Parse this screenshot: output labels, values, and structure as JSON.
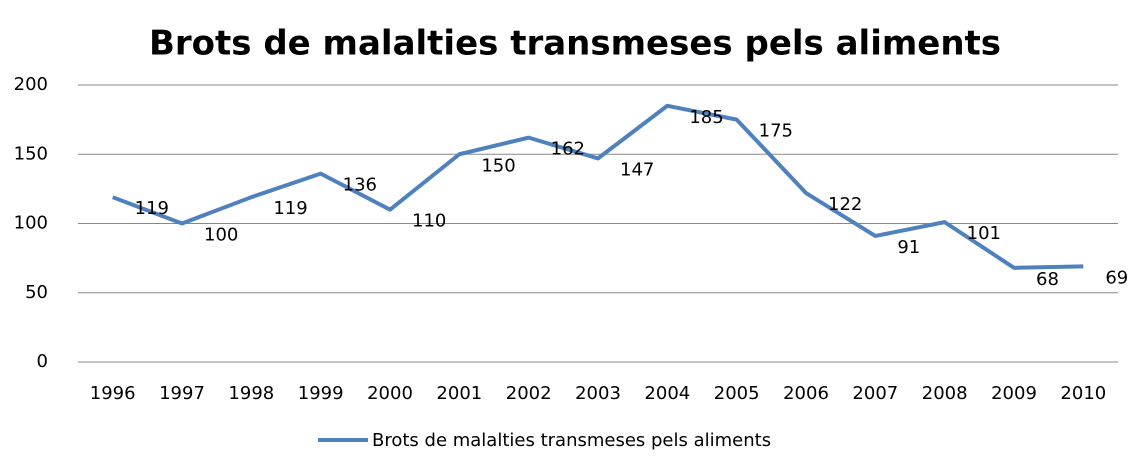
{
  "chart_data": {
    "type": "line",
    "title": "Brots de malalties transmeses pels aliments",
    "categories": [
      "1996",
      "1997",
      "1998",
      "1999",
      "2000",
      "2001",
      "2002",
      "2003",
      "2004",
      "2005",
      "2006",
      "2007",
      "2008",
      "2009",
      "2010"
    ],
    "series": [
      {
        "name": "Brots de malalties transmeses pels aliments",
        "color": "#4f81bd",
        "values": [
          119,
          100,
          119,
          136,
          110,
          150,
          162,
          147,
          185,
          175,
          122,
          91,
          101,
          68,
          69
        ]
      }
    ],
    "ylim": [
      0,
      200
    ],
    "yticks": [
      0,
      50,
      100,
      150,
      200
    ],
    "grid": true,
    "legend": "bottom"
  }
}
